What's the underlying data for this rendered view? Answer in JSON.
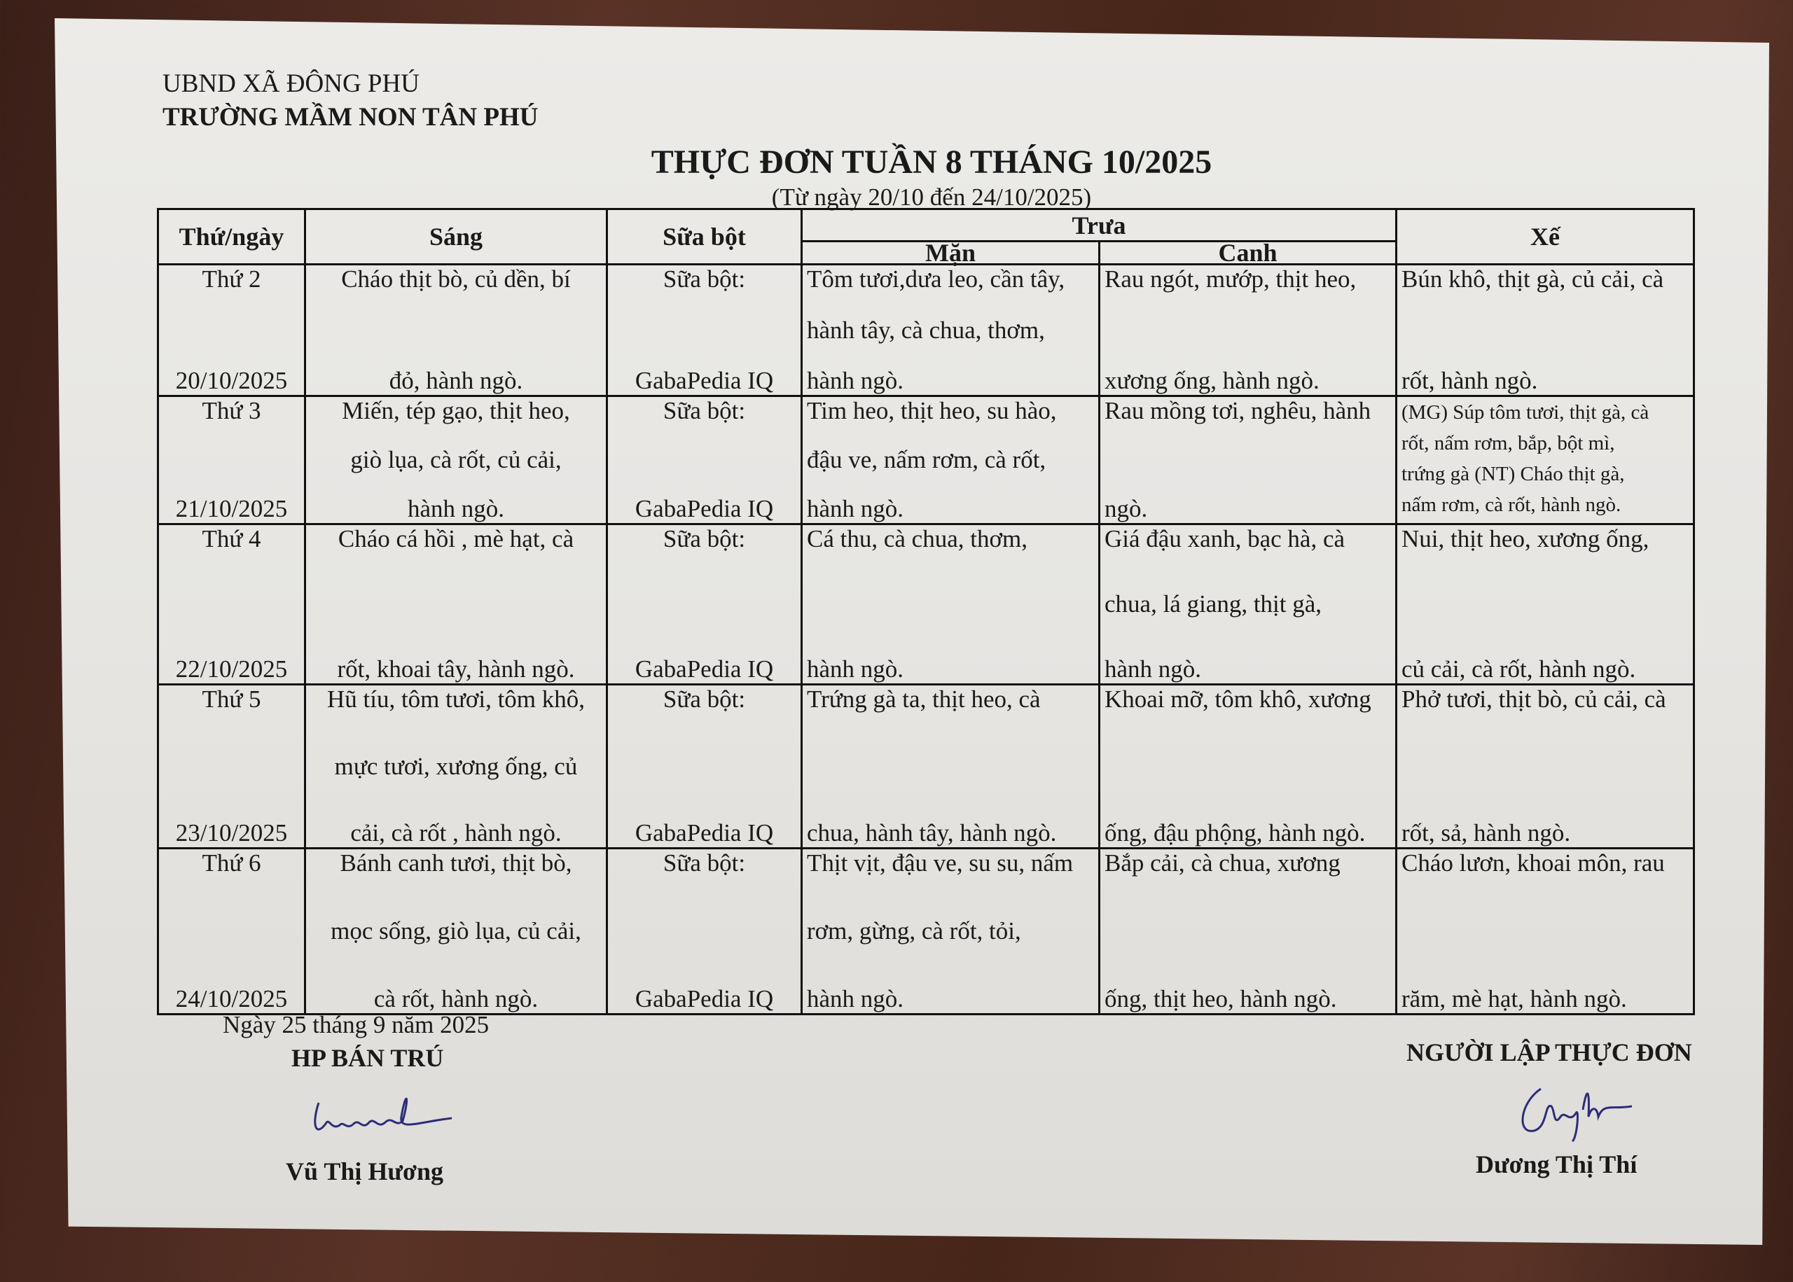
{
  "header": {
    "org": "UBND XÃ ĐÔNG PHÚ",
    "school": "TRƯỜNG MẦM NON TÂN PHÚ",
    "title": "THỰC ĐƠN TUẦN 8 THÁNG 10/2025",
    "subtitle": "(Từ ngày 20/10 đến 24/10/2025)"
  },
  "table": {
    "headers": {
      "day": "Thứ/ngày",
      "sang": "Sáng",
      "sua": "Sữa bột",
      "trua": "Trưa",
      "man": "Mặn",
      "canh": "Canh",
      "xe": "Xế"
    },
    "rows": [
      {
        "day": [
          "Thứ 2",
          "20/10/2025"
        ],
        "sang": [
          "Cháo thịt bò, củ dền, bí",
          "đỏ, hành ngò."
        ],
        "sua": [
          "Sữa bột:",
          "GabaPedia IQ"
        ],
        "man": [
          "Tôm tươi,dưa leo, cần tây,",
          "hành tây, cà chua, thơm,",
          "hành ngò."
        ],
        "canh": [
          "Rau ngót, mướp, thịt heo,",
          "xương ống, hành ngò."
        ],
        "xe": [
          "Bún khô, thịt gà, củ cải, cà",
          "rốt, hành ngò."
        ]
      },
      {
        "day": [
          "Thứ 3",
          "21/10/2025"
        ],
        "sang": [
          "Miến, tép gạo, thịt heo,",
          "giò lụa, cà rốt, củ cải,",
          "hành ngò."
        ],
        "sua": [
          "Sữa bột:",
          "GabaPedia IQ"
        ],
        "man": [
          "Tim heo, thịt heo, su hào,",
          "đậu ve, nấm rơm, cà rốt,",
          "hành ngò."
        ],
        "canh": [
          "Rau mồng tơi, nghêu, hành",
          "ngò."
        ],
        "xe": [
          "(MG) Súp tôm tươi, thịt gà, cà",
          "rốt, nấm rơm, bắp, bột mì,",
          "trứng gà (NT) Cháo thịt gà,",
          "nấm rơm, cà rốt, hành ngò."
        ]
      },
      {
        "day": [
          "Thứ 4",
          "22/10/2025"
        ],
        "sang": [
          "Cháo cá hồi , mè hạt, cà",
          "rốt, khoai tây,  hành ngò."
        ],
        "sua": [
          "Sữa bột:",
          "GabaPedia IQ"
        ],
        "man": [
          "Cá thu, cà chua, thơm,",
          "hành ngò."
        ],
        "canh": [
          " Giá đậu xanh, bạc hà, cà",
          "chua, lá giang, thịt gà,",
          "hành ngò."
        ],
        "xe": [
          "Nui, thịt heo, xương ống,",
          "củ cải, cà rốt, hành ngò."
        ]
      },
      {
        "day": [
          "Thứ 5",
          "23/10/2025"
        ],
        "sang": [
          "Hũ tíu, tôm tươi, tôm khô,",
          "mực tươi, xương ống, củ",
          "cải, cà rốt , hành ngò."
        ],
        "sua": [
          "Sữa bột:",
          "GabaPedia IQ"
        ],
        "man": [
          "Trứng gà ta, thịt heo, cà",
          "chua, hành tây, hành ngò."
        ],
        "canh": [
          "Khoai mỡ, tôm khô, xương",
          "ống, đậu phộng, hành ngò."
        ],
        "xe": [
          "Phở tươi, thịt bò, củ cải, cà",
          "rốt, sả, hành ngò."
        ]
      },
      {
        "day": [
          "Thứ 6",
          "24/10/2025"
        ],
        "sang": [
          "Bánh canh tươi, thịt bò,",
          "mọc sống, giò lụa, củ cải,",
          "cà rốt, hành ngò."
        ],
        "sua": [
          "Sữa bột:",
          "GabaPedia IQ"
        ],
        "man": [
          "Thịt vịt, đậu ve, su su, nấm",
          "rơm, gừng, cà rốt, tỏi,",
          "hành ngò."
        ],
        "canh": [
          "Bắp cải, cà chua, xương",
          "ống, thịt heo, hành ngò."
        ],
        "xe": [
          "Cháo lươn, khoai môn, rau",
          "răm, mè hạt, hành ngò."
        ]
      }
    ]
  },
  "footer": {
    "date": "Ngày 25 tháng 9 năm 2025",
    "left_role": "HP BÁN TRÚ",
    "left_name": "Vũ Thị Hương",
    "right_role": "NGƯỜI LẬP THỰC ĐƠN",
    "right_name": "Dương Thị Thí"
  },
  "colors": {
    "ink": "#1a1a1a",
    "signature": "#2b2d7a",
    "paper": "#e8e6e2",
    "background": "#4a2a20"
  }
}
